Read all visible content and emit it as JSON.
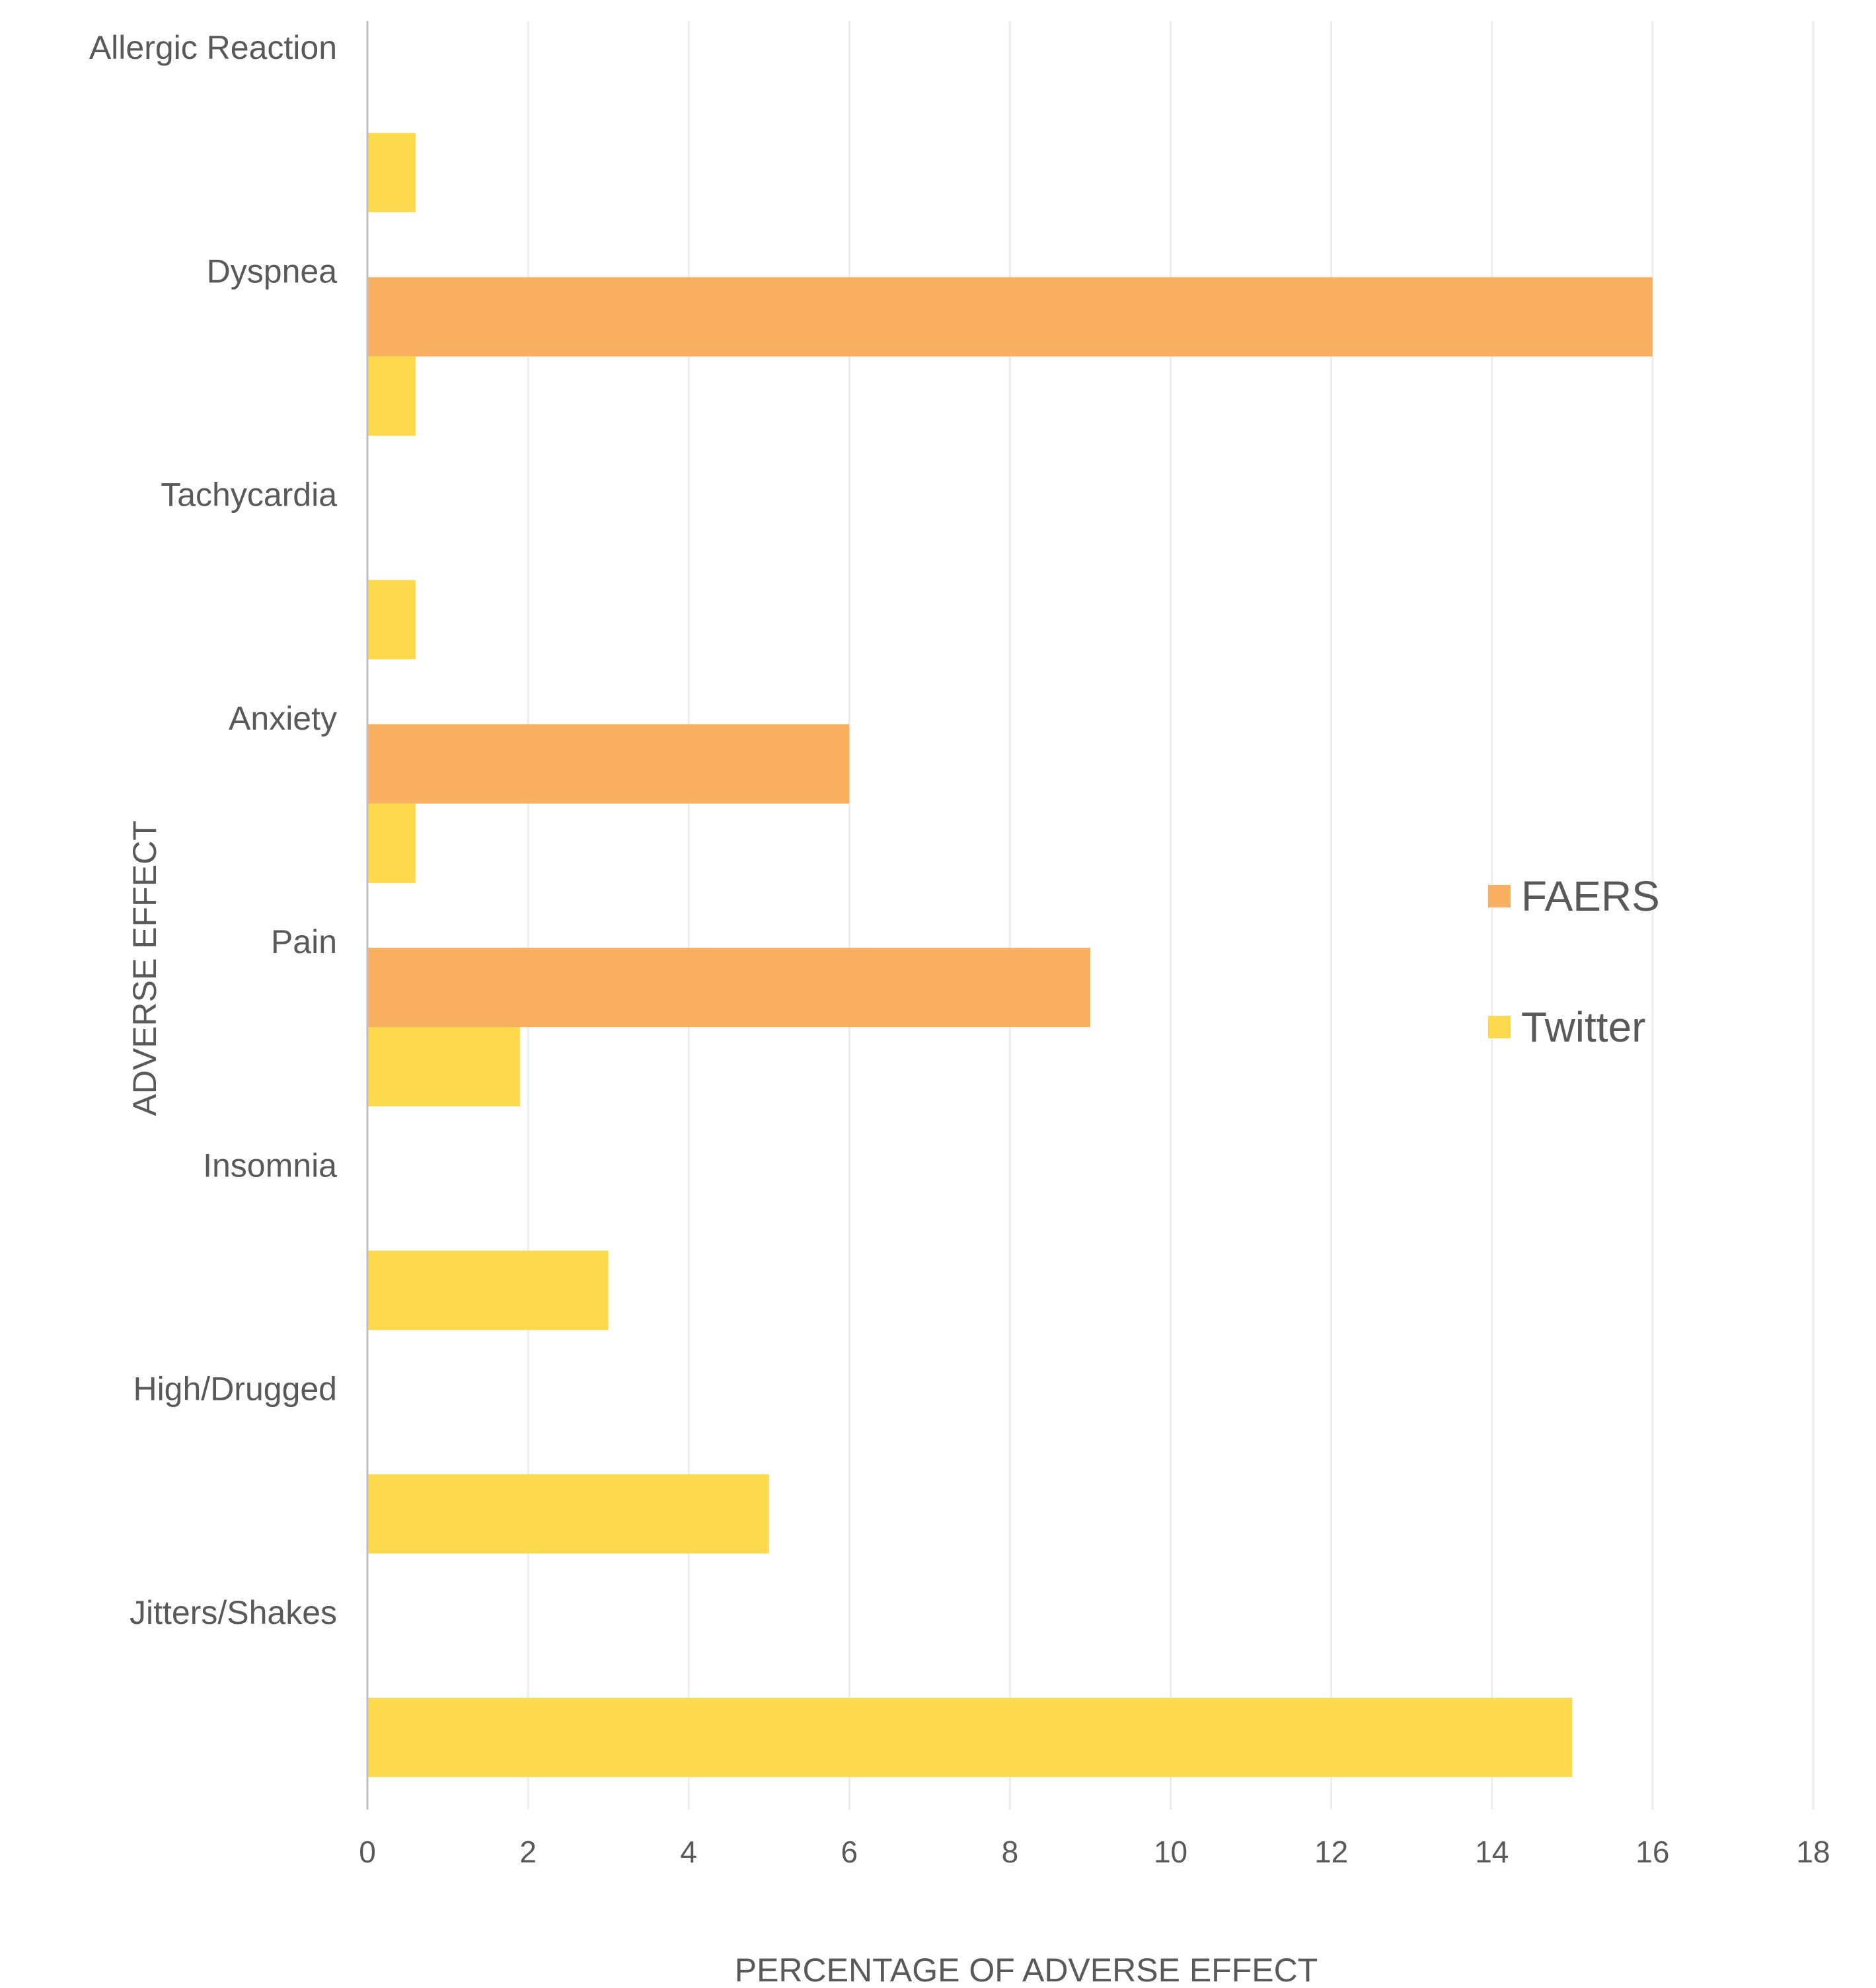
{
  "chart_data": {
    "type": "bar",
    "orientation": "horizontal",
    "categories": [
      "Allergic Reaction",
      "Dyspnea",
      "Tachycardia",
      "Anxiety",
      "Pain",
      "Insomnia",
      "High/Drugged",
      "Jitters/Shakes"
    ],
    "series": [
      {
        "name": "FAERS",
        "color": "#F8B060",
        "values": [
          0,
          16,
          0,
          6,
          9,
          0,
          0,
          0
        ]
      },
      {
        "name": "Twitter",
        "color": "#FDD94E",
        "values": [
          0.6,
          0.6,
          0.6,
          0.6,
          1.9,
          3,
          5,
          15
        ]
      }
    ],
    "xlabel": "PERCENTAGE OF ADVERSE EFFECT",
    "ylabel": "ADVERSE EFFECT",
    "xlim": [
      0,
      18
    ],
    "xticks": [
      "0",
      "2",
      "4",
      "6",
      "8",
      "10",
      "12",
      "14",
      "16",
      "18"
    ],
    "grid": "vertical",
    "legend_position": "right"
  }
}
